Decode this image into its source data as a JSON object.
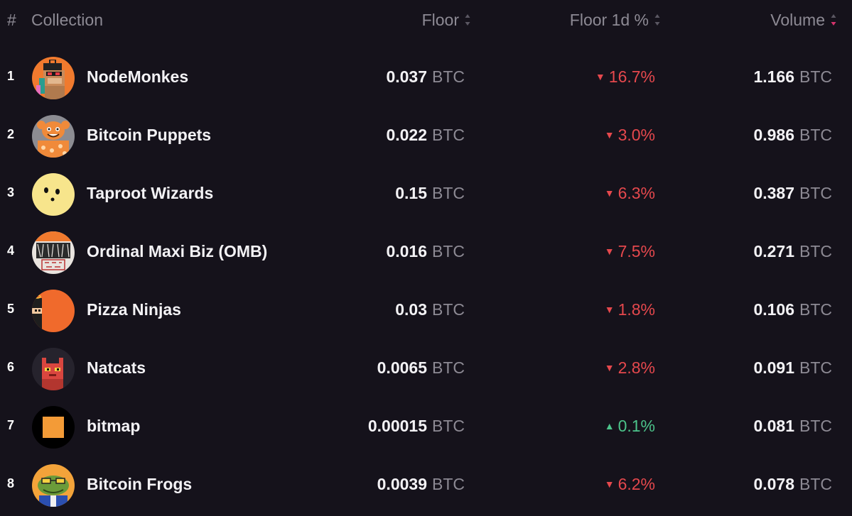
{
  "header": {
    "rank": "#",
    "collection": "Collection",
    "floor": "Floor",
    "floor_1d": "Floor 1d %",
    "volume": "Volume"
  },
  "colors": {
    "background": "#15121b",
    "muted": "#8d8a94",
    "down": "#e5484d",
    "up": "#4cc38a",
    "sort_active": "#d6336c"
  },
  "rows": [
    {
      "rank": "1",
      "name": "NodeMonkes",
      "avatar": "monkey-avatar-icon",
      "floor": "0.037",
      "floor_unit": "BTC",
      "change": "16.7%",
      "direction": "down",
      "volume": "1.166",
      "volume_unit": "BTC"
    },
    {
      "rank": "2",
      "name": "Bitcoin Puppets",
      "avatar": "puppet-avatar-icon",
      "floor": "0.022",
      "floor_unit": "BTC",
      "change": "3.0%",
      "direction": "down",
      "volume": "0.986",
      "volume_unit": "BTC"
    },
    {
      "rank": "3",
      "name": "Taproot Wizards",
      "avatar": "wizard-avatar-icon",
      "floor": "0.15",
      "floor_unit": "BTC",
      "change": "6.3%",
      "direction": "down",
      "volume": "0.387",
      "volume_unit": "BTC"
    },
    {
      "rank": "4",
      "name": "Ordinal Maxi Biz (OMB)",
      "avatar": "omb-avatar-icon",
      "floor": "0.016",
      "floor_unit": "BTC",
      "change": "7.5%",
      "direction": "down",
      "volume": "0.271",
      "volume_unit": "BTC"
    },
    {
      "rank": "5",
      "name": "Pizza Ninjas",
      "avatar": "ninja-avatar-icon",
      "floor": "0.03",
      "floor_unit": "BTC",
      "change": "1.8%",
      "direction": "down",
      "volume": "0.106",
      "volume_unit": "BTC"
    },
    {
      "rank": "6",
      "name": "Natcats",
      "avatar": "cat-avatar-icon",
      "floor": "0.0065",
      "floor_unit": "BTC",
      "change": "2.8%",
      "direction": "down",
      "volume": "0.091",
      "volume_unit": "BTC"
    },
    {
      "rank": "7",
      "name": "bitmap",
      "avatar": "bitmap-avatar-icon",
      "floor": "0.00015",
      "floor_unit": "BTC",
      "change": "0.1%",
      "direction": "up",
      "volume": "0.081",
      "volume_unit": "BTC"
    },
    {
      "rank": "8",
      "name": "Bitcoin Frogs",
      "avatar": "frog-avatar-icon",
      "floor": "0.0039",
      "floor_unit": "BTC",
      "change": "6.2%",
      "direction": "down",
      "volume": "0.078",
      "volume_unit": "BTC"
    }
  ]
}
